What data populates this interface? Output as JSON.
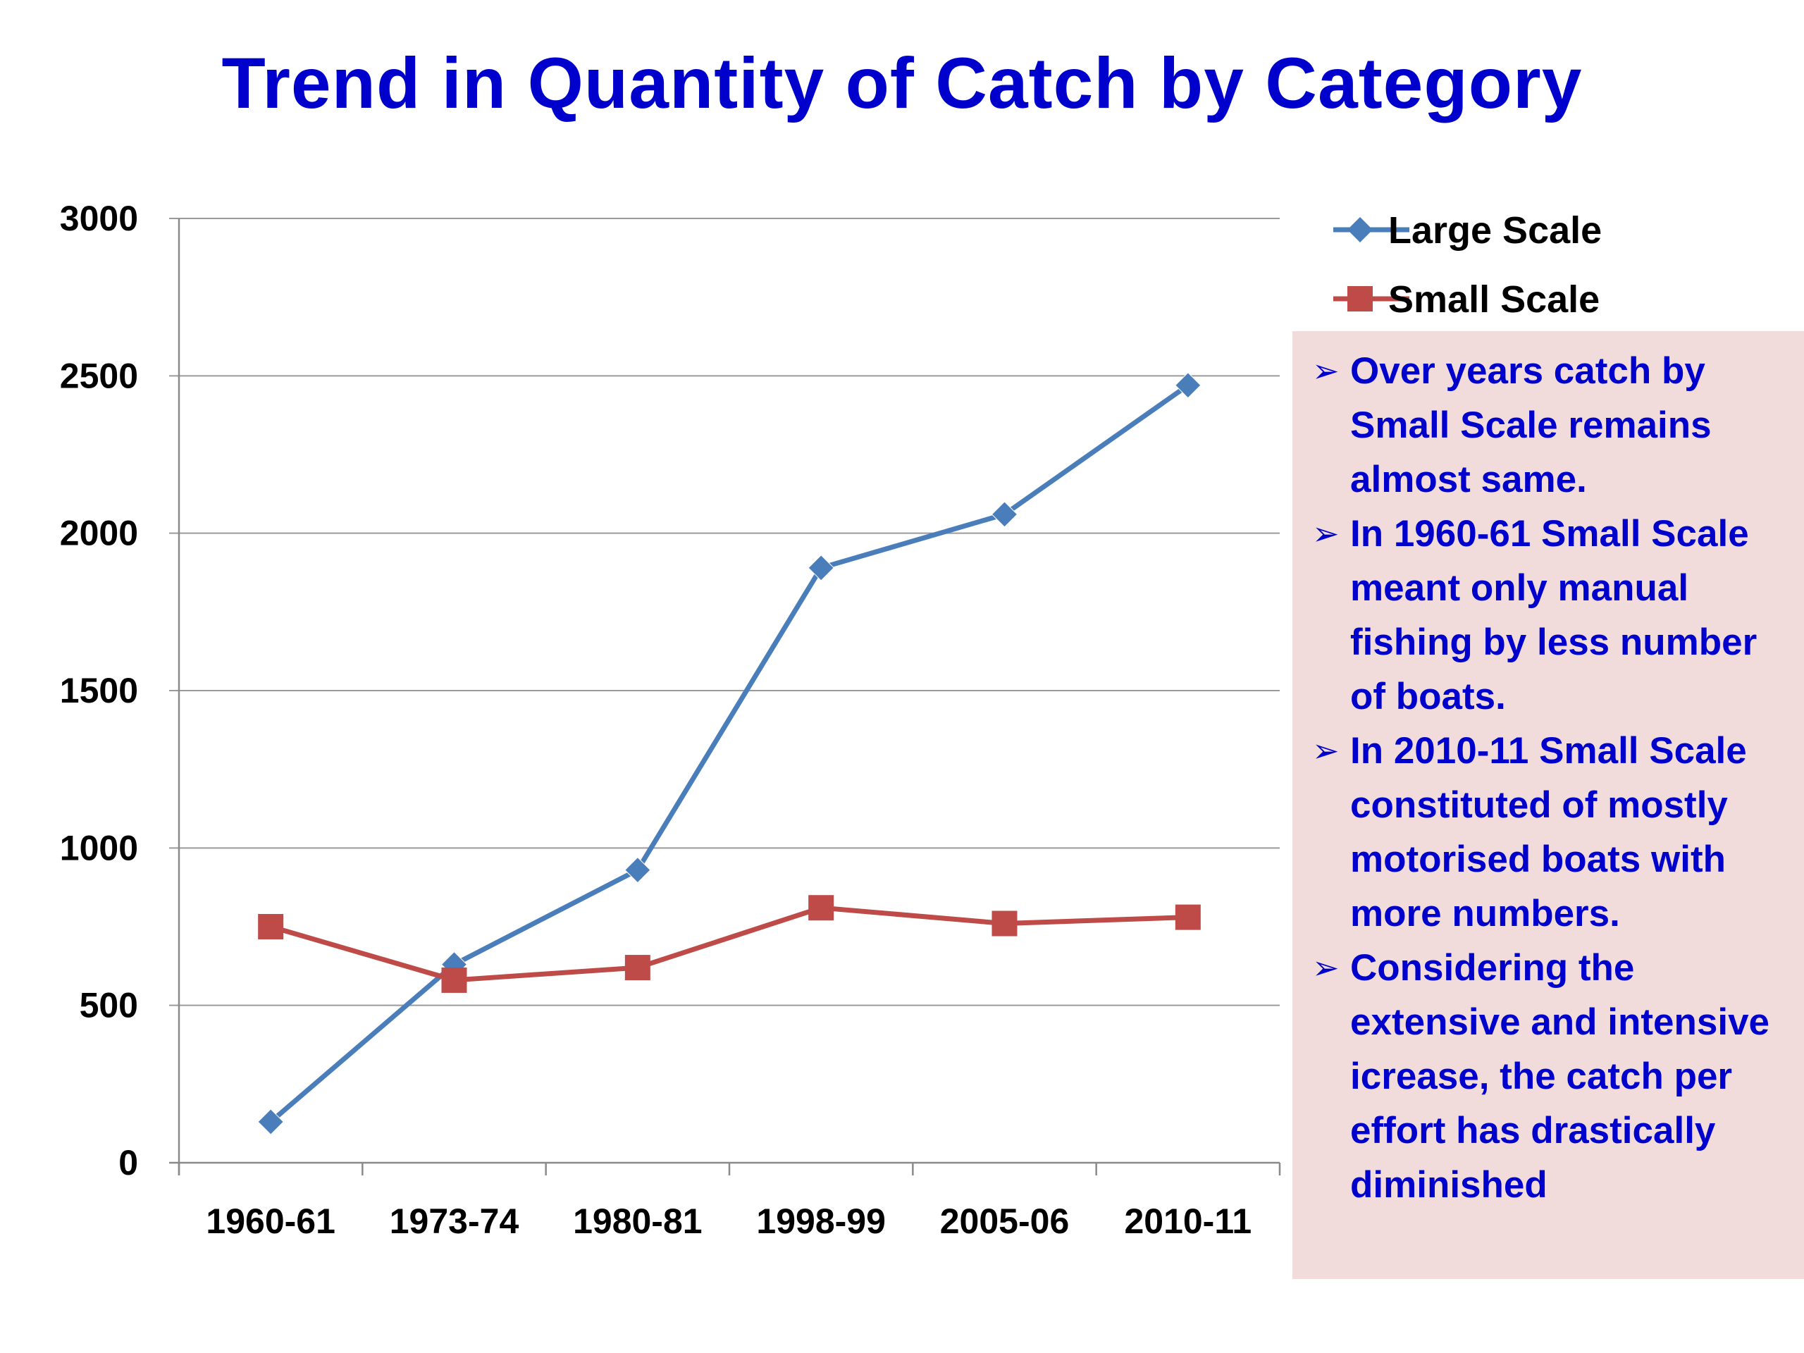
{
  "title": "Trend in Quantity of Catch by Category",
  "chart_data": {
    "type": "line",
    "title": "Trend in Quantity of Catch by Category",
    "xlabel": "",
    "ylabel": "",
    "categories": [
      "1960-61",
      "1973-74",
      "1980-81",
      "1998-99",
      "2005-06",
      "2010-11"
    ],
    "ylim": [
      0,
      3000
    ],
    "yticks": [
      "0",
      "500",
      "1000",
      "1500",
      "2000",
      "2500",
      "3000"
    ],
    "grid": true,
    "legend_position": "right",
    "series": [
      {
        "name": "Large Scale",
        "color": "#4a7ebb",
        "marker": "diamond",
        "values": [
          130,
          630,
          930,
          1890,
          2060,
          2470
        ]
      },
      {
        "name": "Small Scale",
        "color": "#be4b48",
        "marker": "square",
        "values": [
          750,
          580,
          620,
          810,
          760,
          780
        ]
      }
    ]
  },
  "notes": {
    "bullet_glyph": "➢",
    "items": [
      "Over years catch by Small Scale remains almost same.",
      "In 1960-61 Small Scale meant only manual fishing by less number of boats.",
      "In 2010-11 Small Scale constituted of mostly motorised boats with more numbers.",
      "Considering the extensive and intensive icrease, the catch per effort has drastically diminished"
    ],
    "background_color": "#f2dcdb",
    "text_color": "#0000cc"
  }
}
